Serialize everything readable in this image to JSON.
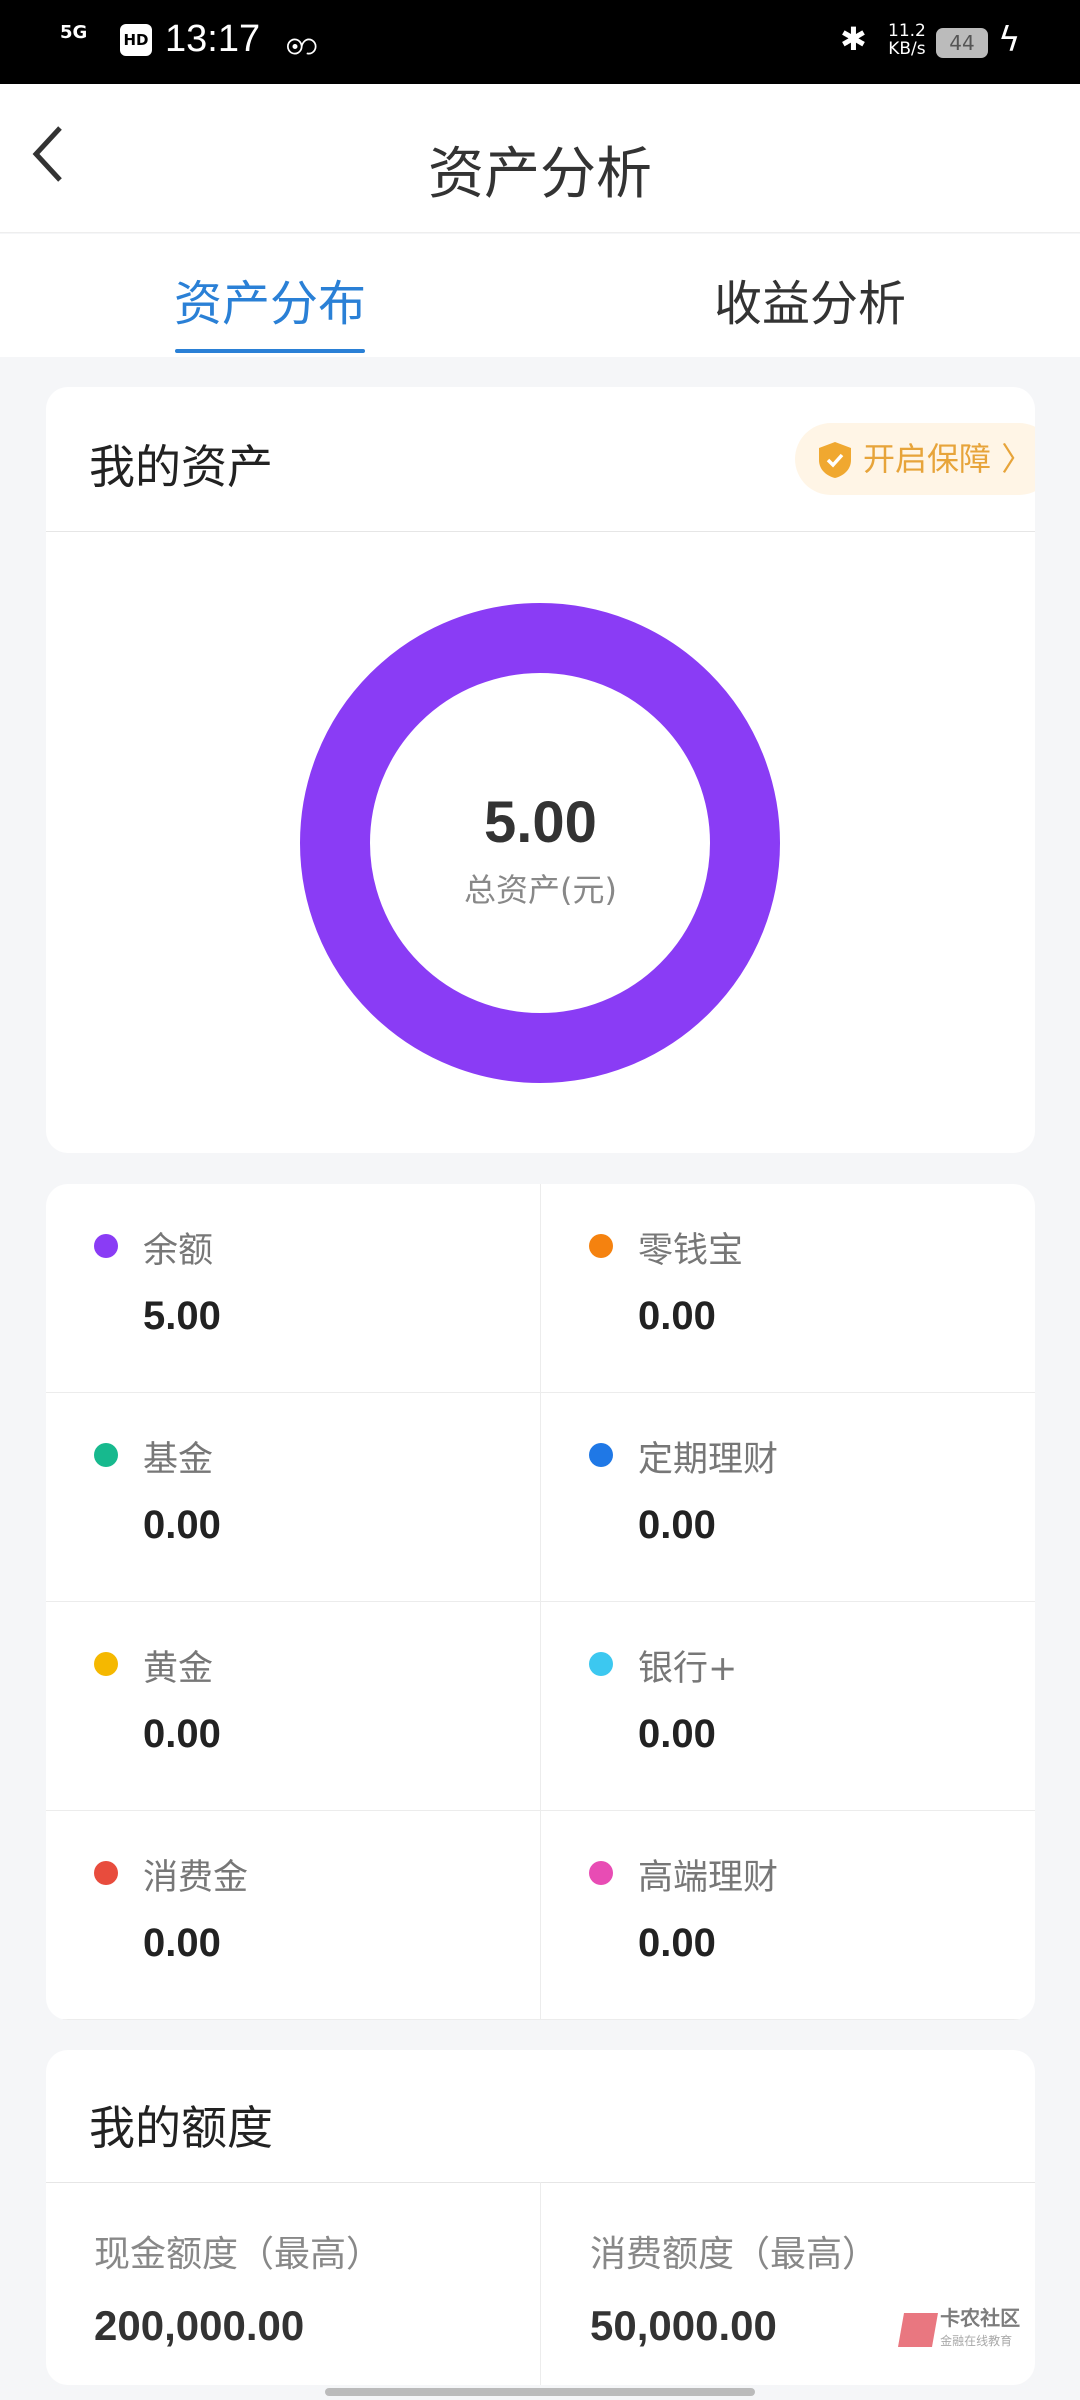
{
  "status_bar": {
    "network": "5G",
    "hd": "HD",
    "time": "13:17",
    "speed": "11.2",
    "speed_unit": "KB/s",
    "battery": "44"
  },
  "header": {
    "title": "资产分析",
    "back_icon": "chevron-left-icon"
  },
  "tabs": [
    {
      "label": "资产分布",
      "active": true
    },
    {
      "label": "收益分析",
      "active": false
    }
  ],
  "assets_card": {
    "title": "我的资产",
    "badge": "开启保障",
    "badge_icon": "shield-check-icon",
    "total": "5.00",
    "total_label": "总资产(元)",
    "ring_color": "#8a3cf5"
  },
  "asset_items": [
    {
      "label": "余额",
      "value": "5.00",
      "color": "#8a3cf5"
    },
    {
      "label": "零钱宝",
      "value": "0.00",
      "color": "#f5820f"
    },
    {
      "label": "基金",
      "value": "0.00",
      "color": "#17b98e"
    },
    {
      "label": "定期理财",
      "value": "0.00",
      "color": "#1f78e6"
    },
    {
      "label": "黄金",
      "value": "0.00",
      "color": "#f5b800"
    },
    {
      "label": "银行+",
      "value": "0.00",
      "color": "#3cc8f0"
    },
    {
      "label": "消费金",
      "value": "0.00",
      "color": "#e84c3d"
    },
    {
      "label": "高端理财",
      "value": "0.00",
      "color": "#e84cb4"
    }
  ],
  "quota_card": {
    "title": "我的额度",
    "items": [
      {
        "label": "现金额度（最高）",
        "value": "200,000.00"
      },
      {
        "label": "消费额度（最高）",
        "value": "50,000.00"
      }
    ]
  },
  "watermark": {
    "name": "卡农社区",
    "sub": "金融在线教育"
  }
}
